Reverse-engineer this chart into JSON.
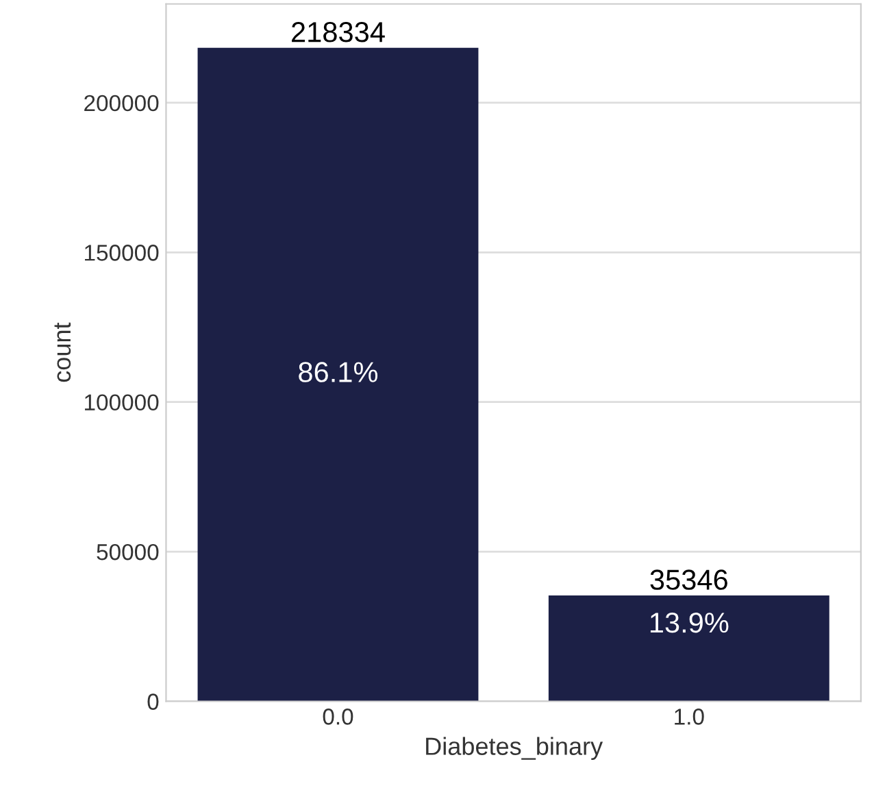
{
  "chart_data": {
    "type": "bar",
    "xlabel": "Diabetes_binary",
    "ylabel": "count",
    "categories": [
      "0.0",
      "1.0"
    ],
    "values": [
      218334,
      35346
    ],
    "color": "#1c2046",
    "data_labels": true,
    "ylim": [
      0,
      233000
    ],
    "yticks": [
      0,
      50000,
      100000,
      150000,
      200000
    ],
    "grid": "y",
    "annotations": [
      "86.1%",
      "13.9%"
    ]
  }
}
